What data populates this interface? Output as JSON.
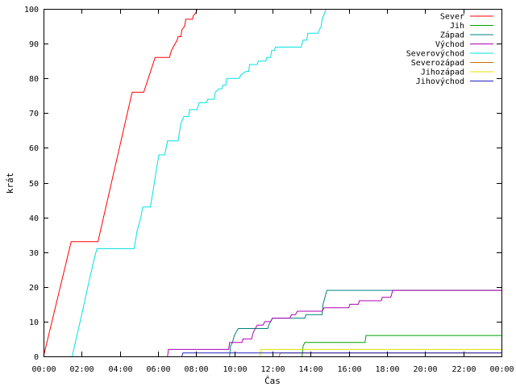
{
  "chart_data": {
    "type": "line",
    "title": "",
    "xlabel": "Čas",
    "ylabel": "krát",
    "xlim": [
      0,
      24
    ],
    "ylim": [
      0,
      100
    ],
    "x_ticks": [
      {
        "value": 0,
        "label": "00:00"
      },
      {
        "value": 2,
        "label": "02:00"
      },
      {
        "value": 4,
        "label": "04:00"
      },
      {
        "value": 6,
        "label": "06:00"
      },
      {
        "value": 8,
        "label": "08:00"
      },
      {
        "value": 10,
        "label": "10:00"
      },
      {
        "value": 12,
        "label": "12:00"
      },
      {
        "value": 14,
        "label": "14:00"
      },
      {
        "value": 16,
        "label": "16:00"
      },
      {
        "value": 18,
        "label": "18:00"
      },
      {
        "value": 20,
        "label": "20:00"
      },
      {
        "value": 22,
        "label": "22:00"
      },
      {
        "value": 24,
        "label": "00:00"
      }
    ],
    "y_ticks": [
      {
        "value": 0,
        "label": "0"
      },
      {
        "value": 10,
        "label": "10"
      },
      {
        "value": 20,
        "label": "20"
      },
      {
        "value": 30,
        "label": "30"
      },
      {
        "value": 40,
        "label": "40"
      },
      {
        "value": 50,
        "label": "50"
      },
      {
        "value": 60,
        "label": "60"
      },
      {
        "value": 70,
        "label": "70"
      },
      {
        "value": 80,
        "label": "80"
      },
      {
        "value": 90,
        "label": "90"
      },
      {
        "value": 100,
        "label": "100"
      }
    ],
    "grid": false,
    "legend_position": "top-right",
    "series": [
      {
        "name": "Sever",
        "color": "#ff0000",
        "points": [
          [
            0.0,
            0
          ],
          [
            1.45,
            33
          ],
          [
            2.85,
            33
          ],
          [
            4.6,
            75
          ],
          [
            4.65,
            76
          ],
          [
            5.25,
            76
          ],
          [
            5.85,
            86
          ],
          [
            6.6,
            86
          ],
          [
            6.7,
            88
          ],
          [
            6.8,
            89
          ],
          [
            6.9,
            90
          ],
          [
            7.0,
            91
          ],
          [
            7.05,
            92
          ],
          [
            7.2,
            92
          ],
          [
            7.25,
            94
          ],
          [
            7.4,
            95
          ],
          [
            7.45,
            97
          ],
          [
            7.8,
            97
          ],
          [
            7.85,
            98
          ],
          [
            8.0,
            99
          ],
          [
            8.05,
            100
          ]
        ]
      },
      {
        "name": "Jih",
        "color": "#00a000",
        "points": [
          [
            13.55,
            0
          ],
          [
            13.6,
            3
          ],
          [
            13.7,
            4
          ],
          [
            16.85,
            4
          ],
          [
            16.9,
            6
          ],
          [
            24,
            6
          ]
        ]
      },
      {
        "name": "Západ",
        "color": "#008080",
        "points": [
          [
            9.75,
            0
          ],
          [
            9.8,
            3
          ],
          [
            9.9,
            4
          ],
          [
            10.0,
            6
          ],
          [
            10.1,
            7
          ],
          [
            10.2,
            8
          ],
          [
            11.75,
            8
          ],
          [
            11.8,
            9
          ],
          [
            11.9,
            10
          ],
          [
            12.0,
            11
          ],
          [
            13.7,
            11
          ],
          [
            13.75,
            12
          ],
          [
            14.6,
            12
          ],
          [
            14.65,
            15
          ],
          [
            14.75,
            17
          ],
          [
            14.85,
            19
          ],
          [
            24,
            19
          ]
        ]
      },
      {
        "name": "Východ",
        "color": "#b000b0",
        "points": [
          [
            6.5,
            0
          ],
          [
            6.55,
            2
          ],
          [
            9.7,
            2
          ],
          [
            9.75,
            4
          ],
          [
            10.4,
            4
          ],
          [
            10.45,
            5
          ],
          [
            10.9,
            5
          ],
          [
            11.0,
            7
          ],
          [
            11.1,
            8
          ],
          [
            11.2,
            9
          ],
          [
            11.5,
            9
          ],
          [
            11.6,
            10
          ],
          [
            11.9,
            10
          ],
          [
            12.0,
            11
          ],
          [
            12.9,
            11
          ],
          [
            13.0,
            12
          ],
          [
            13.2,
            12
          ],
          [
            13.3,
            13
          ],
          [
            14.6,
            13
          ],
          [
            14.7,
            14
          ],
          [
            16.0,
            14
          ],
          [
            16.05,
            15
          ],
          [
            16.5,
            15
          ],
          [
            16.55,
            16
          ],
          [
            17.7,
            16
          ],
          [
            17.75,
            17
          ],
          [
            18.2,
            17
          ],
          [
            18.3,
            19
          ],
          [
            24,
            19
          ]
        ]
      },
      {
        "name": "Severovýchod",
        "color": "#00e0e0",
        "points": [
          [
            1.5,
            0
          ],
          [
            2.0,
            12
          ],
          [
            2.4,
            22
          ],
          [
            2.7,
            29
          ],
          [
            2.8,
            31
          ],
          [
            4.75,
            31
          ],
          [
            4.9,
            36
          ],
          [
            5.1,
            40
          ],
          [
            5.2,
            43
          ],
          [
            5.6,
            43
          ],
          [
            5.75,
            48
          ],
          [
            5.95,
            55
          ],
          [
            6.05,
            58
          ],
          [
            6.35,
            58
          ],
          [
            6.5,
            62
          ],
          [
            7.05,
            62
          ],
          [
            7.2,
            67
          ],
          [
            7.35,
            69
          ],
          [
            7.6,
            69
          ],
          [
            7.65,
            71
          ],
          [
            8.05,
            71
          ],
          [
            8.15,
            73
          ],
          [
            8.55,
            73
          ],
          [
            8.6,
            74
          ],
          [
            8.95,
            74
          ],
          [
            9.0,
            76
          ],
          [
            9.2,
            77
          ],
          [
            9.35,
            77
          ],
          [
            9.4,
            78
          ],
          [
            9.55,
            78
          ],
          [
            9.6,
            80
          ],
          [
            10.25,
            80
          ],
          [
            10.35,
            81
          ],
          [
            10.6,
            82
          ],
          [
            10.75,
            82
          ],
          [
            10.8,
            84
          ],
          [
            11.2,
            84
          ],
          [
            11.25,
            85
          ],
          [
            11.65,
            85
          ],
          [
            11.7,
            86
          ],
          [
            11.9,
            86
          ],
          [
            11.95,
            88
          ],
          [
            12.1,
            88
          ],
          [
            12.15,
            89
          ],
          [
            13.5,
            89
          ],
          [
            13.6,
            91
          ],
          [
            13.8,
            91
          ],
          [
            13.85,
            93
          ],
          [
            14.4,
            93
          ],
          [
            14.45,
            94
          ],
          [
            14.55,
            95
          ],
          [
            14.6,
            97
          ],
          [
            14.75,
            99
          ],
          [
            14.8,
            100
          ]
        ]
      },
      {
        "name": "Severozápad",
        "color": "#c07000",
        "points": [
          [
            12.35,
            0
          ],
          [
            12.4,
            1
          ],
          [
            24,
            1
          ]
        ]
      },
      {
        "name": "Jihozápad",
        "color": "#e0e000",
        "points": [
          [
            11.35,
            0
          ],
          [
            11.4,
            2
          ],
          [
            24,
            2
          ]
        ]
      },
      {
        "name": "Jihovýchod",
        "color": "#2020c0",
        "points": [
          [
            7.25,
            0
          ],
          [
            7.3,
            1
          ],
          [
            24,
            1
          ]
        ]
      }
    ]
  }
}
